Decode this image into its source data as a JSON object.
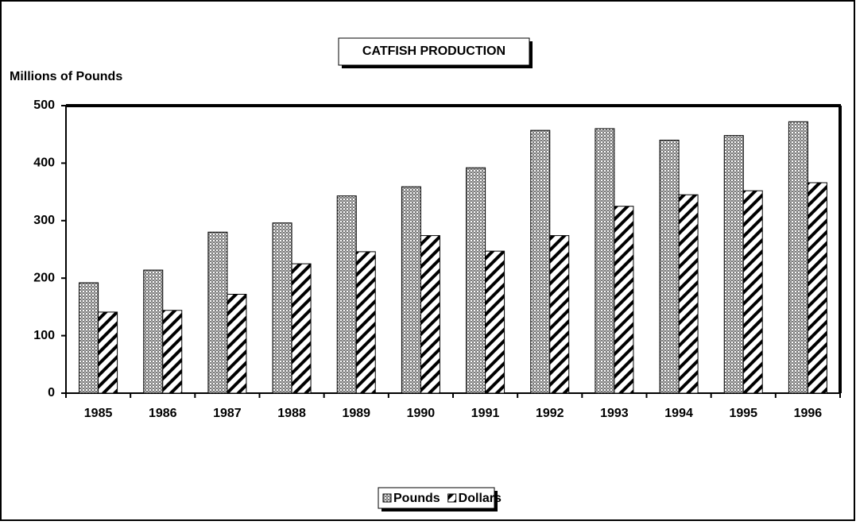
{
  "chart_data": {
    "type": "bar",
    "title": "CATFISH PRODUCTION",
    "y_label": "Millions of Pounds",
    "categories": [
      "1985",
      "1986",
      "1987",
      "1988",
      "1989",
      "1990",
      "1991",
      "1992",
      "1993",
      "1994",
      "1995",
      "1996"
    ],
    "series": [
      {
        "name": "Pounds",
        "color": "#7a7a7a",
        "values": [
          192,
          214,
          280,
          296,
          343,
          359,
          392,
          457,
          460,
          440,
          448,
          472
        ]
      },
      {
        "name": "Dollars",
        "color": "#000000",
        "values": [
          141,
          144,
          172,
          225,
          246,
          274,
          247,
          274,
          325,
          345,
          352,
          366
        ]
      }
    ],
    "ylim": [
      0,
      500
    ],
    "yticks": [
      0,
      100,
      200,
      300,
      400,
      500
    ],
    "grid": false,
    "legend": "bottom"
  }
}
